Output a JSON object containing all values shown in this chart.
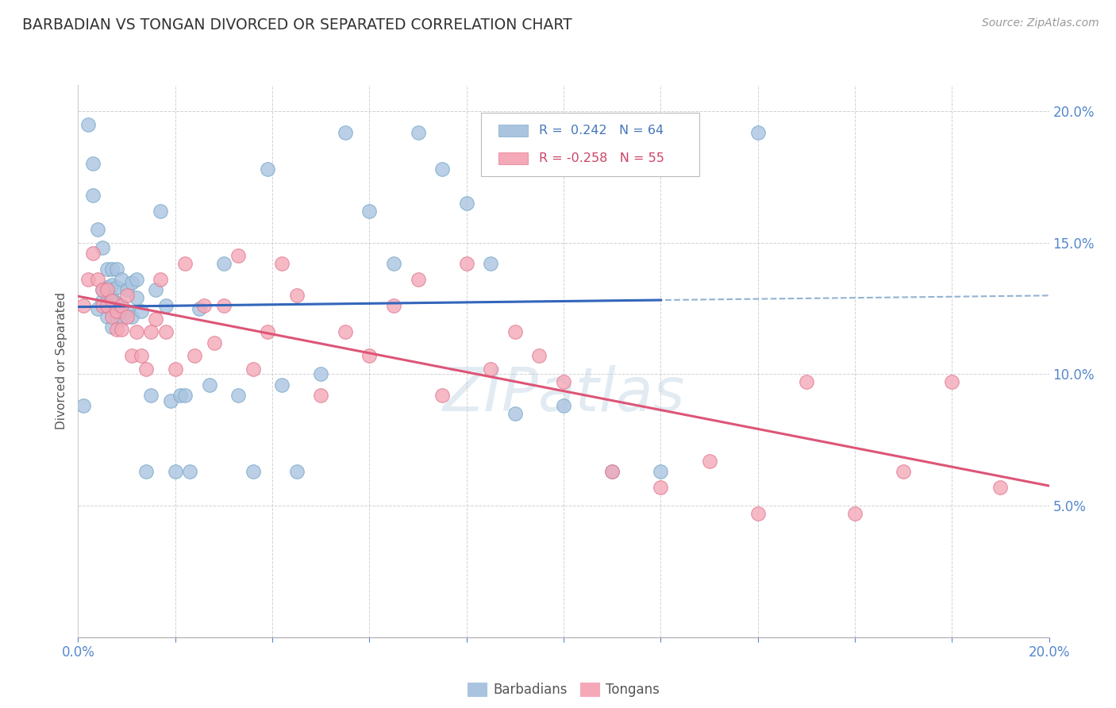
{
  "title": "BARBADIAN VS TONGAN DIVORCED OR SEPARATED CORRELATION CHART",
  "source": "Source: ZipAtlas.com",
  "ylabel": "Divorced or Separated",
  "watermark": "ZIPatlas",
  "legend_barbadians": "Barbadians",
  "legend_tongans": "Tongans",
  "R_barbadian": 0.242,
  "N_barbadian": 64,
  "R_tongan": -0.258,
  "N_tongan": 55,
  "x_min": 0.0,
  "x_max": 0.2,
  "y_min": 0.0,
  "y_max": 0.21,
  "barbadian_color": "#aac4e0",
  "barbadian_edge": "#7aaac8",
  "tongan_color": "#f4a8b8",
  "tongan_edge": "#e07a90",
  "trend_barbadian_color": "#3366bb",
  "trend_tongan_color": "#dd5577",
  "trend_dashed_color": "#88aacc",
  "background_color": "#ffffff",
  "grid_color": "#cccccc",
  "barbadian_x": [
    0.001,
    0.002,
    0.003,
    0.003,
    0.004,
    0.004,
    0.005,
    0.005,
    0.005,
    0.006,
    0.006,
    0.006,
    0.006,
    0.007,
    0.007,
    0.007,
    0.007,
    0.007,
    0.008,
    0.008,
    0.008,
    0.008,
    0.009,
    0.009,
    0.009,
    0.01,
    0.01,
    0.011,
    0.011,
    0.012,
    0.012,
    0.013,
    0.014,
    0.015,
    0.016,
    0.017,
    0.018,
    0.019,
    0.02,
    0.021,
    0.022,
    0.023,
    0.025,
    0.027,
    0.03,
    0.033,
    0.036,
    0.039,
    0.042,
    0.045,
    0.05,
    0.055,
    0.06,
    0.065,
    0.07,
    0.075,
    0.08,
    0.085,
    0.09,
    0.095,
    0.1,
    0.11,
    0.12,
    0.14
  ],
  "barbadian_y": [
    0.088,
    0.195,
    0.18,
    0.168,
    0.125,
    0.155,
    0.128,
    0.132,
    0.148,
    0.122,
    0.128,
    0.133,
    0.14,
    0.118,
    0.124,
    0.129,
    0.134,
    0.14,
    0.122,
    0.127,
    0.133,
    0.14,
    0.121,
    0.126,
    0.136,
    0.124,
    0.132,
    0.122,
    0.135,
    0.129,
    0.136,
    0.124,
    0.063,
    0.092,
    0.132,
    0.162,
    0.126,
    0.09,
    0.063,
    0.092,
    0.092,
    0.063,
    0.125,
    0.096,
    0.142,
    0.092,
    0.063,
    0.178,
    0.096,
    0.063,
    0.1,
    0.192,
    0.162,
    0.142,
    0.192,
    0.178,
    0.165,
    0.142,
    0.085,
    0.192,
    0.088,
    0.063,
    0.063,
    0.192
  ],
  "tongan_x": [
    0.001,
    0.002,
    0.003,
    0.004,
    0.005,
    0.005,
    0.006,
    0.006,
    0.007,
    0.007,
    0.008,
    0.008,
    0.009,
    0.009,
    0.01,
    0.01,
    0.011,
    0.012,
    0.013,
    0.014,
    0.015,
    0.016,
    0.017,
    0.018,
    0.02,
    0.022,
    0.024,
    0.026,
    0.028,
    0.03,
    0.033,
    0.036,
    0.039,
    0.042,
    0.045,
    0.05,
    0.055,
    0.06,
    0.065,
    0.07,
    0.075,
    0.08,
    0.085,
    0.09,
    0.095,
    0.1,
    0.11,
    0.12,
    0.13,
    0.14,
    0.15,
    0.16,
    0.17,
    0.18,
    0.19
  ],
  "tongan_y": [
    0.126,
    0.136,
    0.146,
    0.136,
    0.126,
    0.132,
    0.126,
    0.132,
    0.122,
    0.128,
    0.117,
    0.124,
    0.117,
    0.126,
    0.122,
    0.13,
    0.107,
    0.116,
    0.107,
    0.102,
    0.116,
    0.121,
    0.136,
    0.116,
    0.102,
    0.142,
    0.107,
    0.126,
    0.112,
    0.126,
    0.145,
    0.102,
    0.116,
    0.142,
    0.13,
    0.092,
    0.116,
    0.107,
    0.126,
    0.136,
    0.092,
    0.142,
    0.102,
    0.116,
    0.107,
    0.097,
    0.063,
    0.057,
    0.067,
    0.047,
    0.097,
    0.047,
    0.063,
    0.097,
    0.057
  ]
}
